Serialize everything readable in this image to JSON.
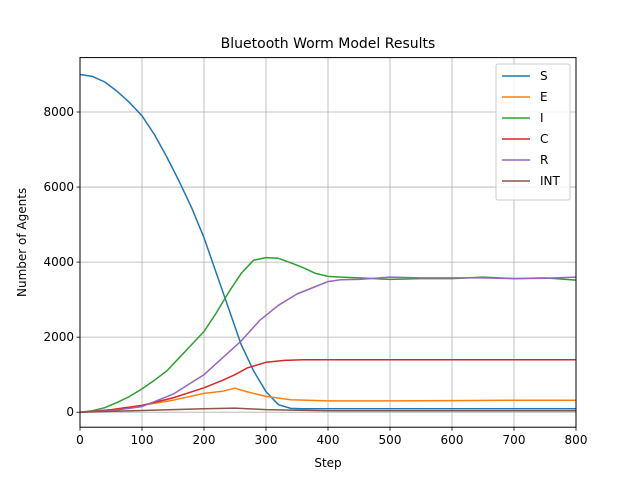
{
  "chart_data": {
    "type": "line",
    "title": "Bluetooth Worm Model Results",
    "xlabel": "Step",
    "ylabel": "Number of Agents",
    "xlim": [
      0,
      800
    ],
    "ylim": [
      -400,
      9450
    ],
    "xticks": [
      0,
      100,
      200,
      300,
      400,
      500,
      600,
      700,
      800
    ],
    "yticks": [
      0,
      2000,
      4000,
      6000,
      8000
    ],
    "grid": true,
    "legend_position": "top-right",
    "series": [
      {
        "name": "S",
        "color": "#1f77b4",
        "x": [
          0,
          20,
          40,
          60,
          80,
          100,
          120,
          140,
          160,
          180,
          200,
          220,
          240,
          260,
          280,
          300,
          320,
          340,
          360,
          400,
          500,
          600,
          700,
          800
        ],
        "y": [
          9000,
          8950,
          8800,
          8550,
          8250,
          7900,
          7400,
          6800,
          6150,
          5450,
          4650,
          3700,
          2750,
          1800,
          1100,
          550,
          200,
          100,
          90,
          90,
          90,
          90,
          90,
          90
        ]
      },
      {
        "name": "E",
        "color": "#ff7f0e",
        "x": [
          0,
          50,
          100,
          150,
          200,
          230,
          250,
          270,
          300,
          340,
          400,
          500,
          600,
          700,
          800
        ],
        "y": [
          0,
          70,
          180,
          320,
          500,
          560,
          640,
          540,
          420,
          330,
          300,
          300,
          310,
          320,
          320
        ]
      },
      {
        "name": "I",
        "color": "#2ca02c",
        "x": [
          0,
          20,
          40,
          60,
          80,
          100,
          120,
          140,
          160,
          180,
          200,
          220,
          240,
          260,
          280,
          300,
          320,
          340,
          360,
          380,
          400,
          420,
          450,
          500,
          550,
          600,
          650,
          700,
          750,
          800
        ],
        "y": [
          0,
          40,
          120,
          260,
          420,
          620,
          850,
          1100,
          1450,
          1800,
          2150,
          2650,
          3200,
          3700,
          4050,
          4120,
          4100,
          3980,
          3850,
          3700,
          3620,
          3600,
          3580,
          3540,
          3560,
          3560,
          3600,
          3560,
          3580,
          3520
        ]
      },
      {
        "name": "C",
        "color": "#d62728",
        "x": [
          0,
          50,
          100,
          150,
          200,
          230,
          250,
          270,
          300,
          330,
          360,
          400,
          500,
          600,
          700,
          800
        ],
        "y": [
          0,
          60,
          180,
          380,
          650,
          850,
          1000,
          1180,
          1330,
          1380,
          1400,
          1400,
          1400,
          1400,
          1400,
          1400
        ]
      },
      {
        "name": "R",
        "color": "#9467bd",
        "x": [
          0,
          50,
          100,
          150,
          200,
          230,
          260,
          290,
          320,
          350,
          380,
          400,
          420,
          450,
          500,
          550,
          600,
          650,
          700,
          750,
          800
        ],
        "y": [
          0,
          40,
          150,
          480,
          1000,
          1450,
          1900,
          2450,
          2850,
          3150,
          3350,
          3480,
          3530,
          3540,
          3600,
          3580,
          3580,
          3580,
          3560,
          3570,
          3600
        ]
      },
      {
        "name": "INT",
        "color": "#8c564b",
        "x": [
          0,
          50,
          100,
          150,
          200,
          250,
          300,
          350,
          400,
          500,
          600,
          700,
          800
        ],
        "y": [
          0,
          20,
          45,
          70,
          90,
          110,
          70,
          50,
          40,
          40,
          40,
          40,
          40
        ]
      }
    ]
  }
}
